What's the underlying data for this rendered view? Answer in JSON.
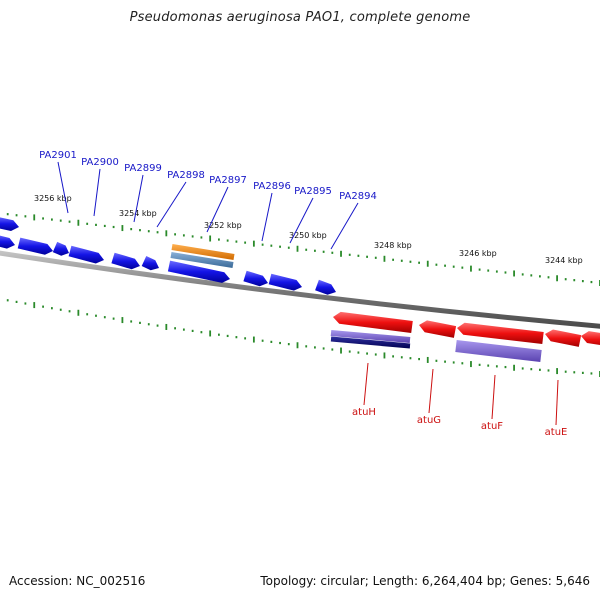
{
  "header": {
    "title": "Pseudomonas aeruginosa PAO1, complete genome"
  },
  "footer": {
    "accession": "Accession: NC_002516",
    "stats": "Topology: circular; Length: 6,264,404 bp; Genes: 5,646"
  },
  "colors": {
    "forward_gene": "#1010e0",
    "reverse_gene": "#ee1010",
    "forward_label": "#1818c8",
    "reverse_label": "#cc1010",
    "backbone": "#8a8a8a",
    "tick": "#2a8a2a",
    "cds_orange": "#f08a10",
    "cds_steel": "#5a8ab8",
    "cds_purple": "#7a62cc",
    "cds_navy": "#101070"
  },
  "ruler_labels": [
    "3256 kbp",
    "3254 kbp",
    "3252 kbp",
    "3250 kbp",
    "3248 kbp",
    "3246 kbp",
    "3244 kbp"
  ],
  "forward_gene_labels": [
    "PA2901",
    "PA2900",
    "PA2899",
    "PA2898",
    "PA2897",
    "PA2896",
    "PA2895",
    "PA2894"
  ],
  "reverse_gene_labels": [
    "atuH",
    "atuG",
    "atuF",
    "atuE"
  ]
}
